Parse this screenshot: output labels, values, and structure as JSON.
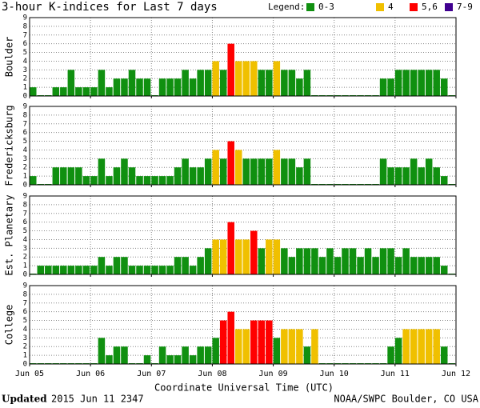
{
  "chart_data": {
    "type": "bar",
    "title": "3-hour K-indices for Last 7 days",
    "legend_title": "Legend:",
    "legend": [
      {
        "label": "0-3",
        "range": [
          0,
          3
        ],
        "color": "#109010"
      },
      {
        "label": "4",
        "range": [
          4,
          4
        ],
        "color": "#f0c000"
      },
      {
        "label": "5,6",
        "range": [
          5,
          6
        ],
        "color": "#ff0000"
      },
      {
        "label": "7-9",
        "range": [
          7,
          9
        ],
        "color": "#400090"
      }
    ],
    "xticks": [
      "Jun 05",
      "Jun 06",
      "Jun 07",
      "Jun 08",
      "Jun 09",
      "Jun 10",
      "Jun 11",
      "Jun 12"
    ],
    "xlabel": "Coordinate Universal Time (UTC)",
    "ylim": [
      0,
      9
    ],
    "yticks": [
      0,
      1,
      2,
      3,
      4,
      5,
      6,
      7,
      8,
      9
    ],
    "grid": true,
    "panels": [
      {
        "name": "Boulder",
        "values": [
          1,
          0,
          0,
          1,
          1,
          3,
          1,
          1,
          1,
          3,
          1,
          2,
          2,
          3,
          2,
          2,
          0,
          2,
          2,
          2,
          3,
          2,
          3,
          3,
          4,
          3,
          6,
          4,
          4,
          4,
          3,
          3,
          4,
          3,
          3,
          2,
          3,
          0,
          0,
          0,
          0,
          0,
          0,
          0,
          0,
          0,
          2,
          2,
          3,
          3,
          3,
          3,
          3,
          3,
          2,
          0
        ]
      },
      {
        "name": "Fredericksburg",
        "values": [
          1,
          0,
          0,
          2,
          2,
          2,
          2,
          1,
          1,
          3,
          1,
          2,
          3,
          2,
          1,
          1,
          1,
          1,
          1,
          2,
          3,
          2,
          2,
          3,
          4,
          3,
          5,
          4,
          3,
          3,
          3,
          3,
          4,
          3,
          3,
          2,
          3,
          0,
          0,
          0,
          0,
          0,
          0,
          0,
          0,
          0,
          3,
          2,
          2,
          2,
          3,
          2,
          3,
          2,
          1,
          0
        ]
      },
      {
        "name": "Est. Planetary",
        "values": [
          0,
          1,
          1,
          1,
          1,
          1,
          1,
          1,
          1,
          2,
          1,
          2,
          2,
          1,
          1,
          1,
          1,
          1,
          1,
          2,
          2,
          1,
          2,
          3,
          4,
          4,
          6,
          4,
          4,
          5,
          3,
          4,
          4,
          3,
          2,
          3,
          3,
          3,
          2,
          3,
          2,
          3,
          3,
          2,
          3,
          2,
          3,
          3,
          2,
          3,
          2,
          2,
          2,
          2,
          1,
          0
        ]
      },
      {
        "name": "College",
        "values": [
          0,
          0,
          0,
          0,
          0,
          0,
          0,
          0,
          0,
          3,
          1,
          2,
          2,
          0,
          0,
          1,
          0,
          2,
          1,
          1,
          2,
          1,
          2,
          2,
          3,
          5,
          6,
          4,
          4,
          5,
          5,
          5,
          3,
          4,
          4,
          4,
          2,
          4,
          0,
          0,
          0,
          0,
          0,
          0,
          0,
          0,
          0,
          2,
          3,
          4,
          4,
          4,
          4,
          4,
          2,
          0
        ]
      }
    ]
  },
  "footer": {
    "updated_label": "Updated",
    "updated": "2015 Jun 11 2347",
    "source": "NOAA/SWPC Boulder, CO USA"
  }
}
